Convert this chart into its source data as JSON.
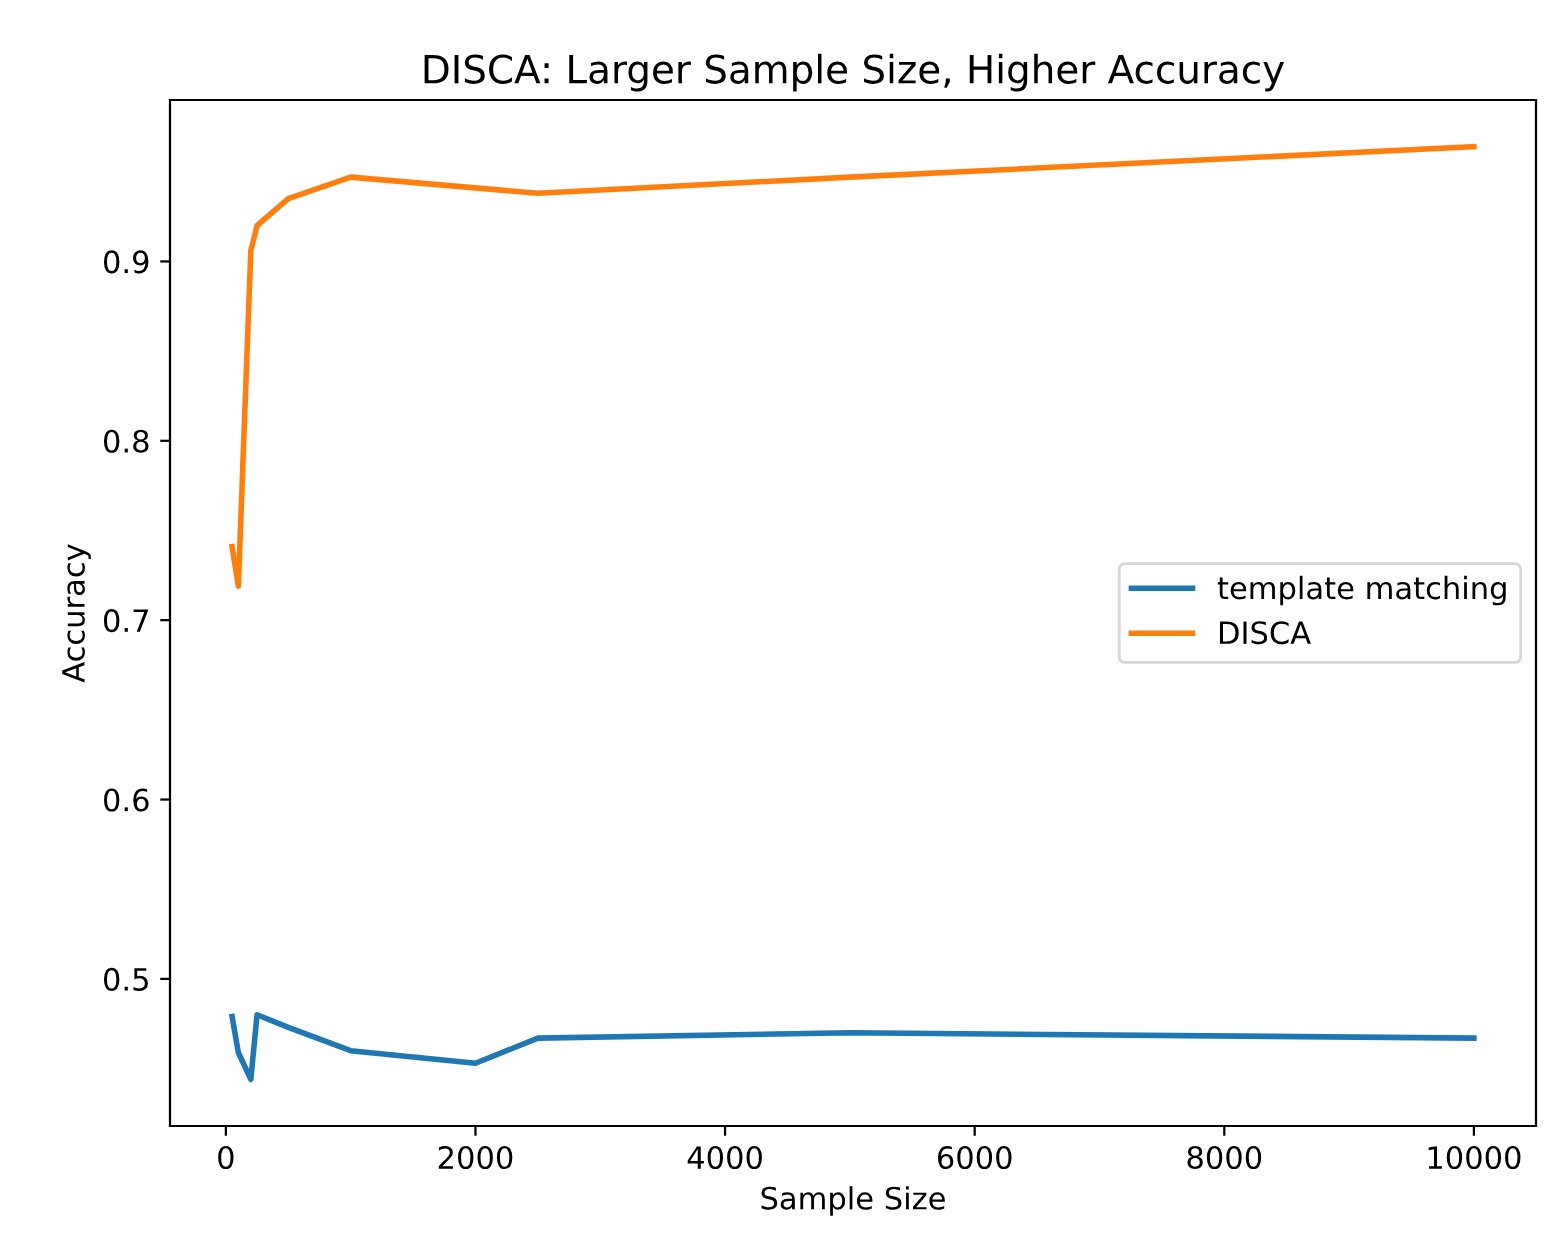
{
  "chart_data": {
    "type": "line",
    "title": "DISCA: Larger Sample Size, Higher Accuracy",
    "xlabel": "Sample Size",
    "ylabel": "Accuracy",
    "x": [
      50,
      100,
      200,
      250,
      500,
      1000,
      2000,
      2500,
      5000,
      10000
    ],
    "series": [
      {
        "name": "template matching",
        "color": "#1f77b4",
        "values": [
          0.479,
          0.459,
          0.444,
          0.48,
          0.473,
          0.46,
          0.453,
          0.467,
          0.47,
          0.467
        ]
      },
      {
        "name": "DISCA",
        "color": "#ff7f0e",
        "x": [
          50,
          100,
          200,
          250,
          500,
          1000,
          2500,
          5000,
          10000
        ],
        "values": [
          0.741,
          0.719,
          0.906,
          0.92,
          0.935,
          0.947,
          0.938,
          0.947,
          0.964
        ]
      }
    ],
    "xlim": [
      -447.5,
      10497.5
    ],
    "ylim": [
      0.418,
      0.99
    ],
    "xticks": [
      0,
      2000,
      4000,
      6000,
      8000,
      10000
    ],
    "yticks": [
      0.5,
      0.6,
      0.7,
      0.8,
      0.9
    ],
    "grid": false,
    "legend": "right",
    "marker": "none",
    "line_style": "solid"
  }
}
